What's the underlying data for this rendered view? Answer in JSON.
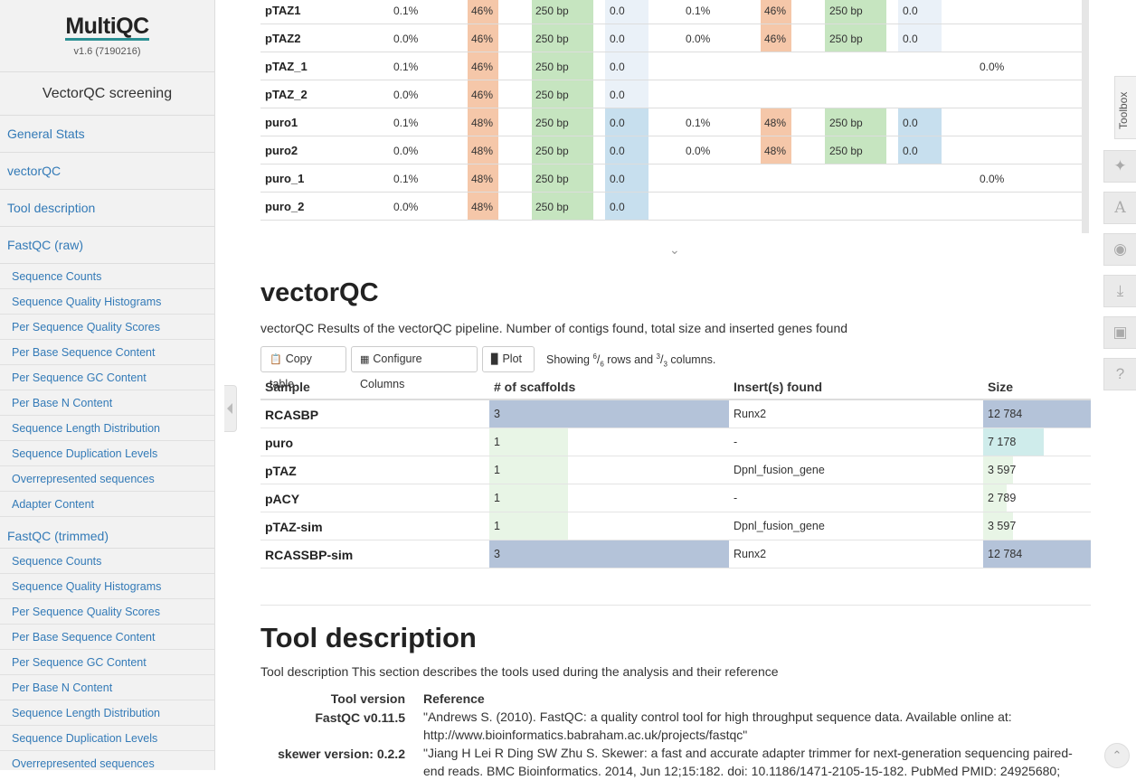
{
  "app": {
    "name": "MultiQC",
    "version": "v1.6 (7190216)",
    "report_title": "VectorQC screening"
  },
  "sidebar": {
    "main_items": [
      {
        "label": "General Stats"
      },
      {
        "label": "vectorQC"
      },
      {
        "label": "Tool description"
      },
      {
        "label": "FastQC (raw)"
      }
    ],
    "fastqc_raw_items": [
      "Sequence Counts",
      "Sequence Quality Histograms",
      "Per Sequence Quality Scores",
      "Per Base Sequence Content",
      "Per Sequence GC Content",
      "Per Base N Content",
      "Sequence Length Distribution",
      "Sequence Duplication Levels",
      "Overrepresented sequences",
      "Adapter Content"
    ],
    "fastqc_trimmed_label": "FastQC (trimmed)",
    "fastqc_trimmed_items": [
      "Sequence Counts",
      "Sequence Quality Histograms",
      "Per Sequence Quality Scores",
      "Per Base Sequence Content",
      "Per Sequence GC Content",
      "Per Base N Content",
      "Sequence Length Distribution",
      "Sequence Duplication Levels",
      "Overrepresented sequences"
    ]
  },
  "general_stats": {
    "rows": [
      {
        "sample": "pTAZ1",
        "dup1": "0.1%",
        "gc1": "46%",
        "len1": "250 bp",
        "n1": "0.0",
        "dup2": "0.1%",
        "gc2": "46%",
        "len2": "250 bp",
        "n2": "0.0",
        "extra": ""
      },
      {
        "sample": "pTAZ2",
        "dup1": "0.0%",
        "gc1": "46%",
        "len1": "250 bp",
        "n1": "0.0",
        "dup2": "0.0%",
        "gc2": "46%",
        "len2": "250 bp",
        "n2": "0.0",
        "extra": ""
      },
      {
        "sample": "pTAZ_1",
        "dup1": "0.1%",
        "gc1": "46%",
        "len1": "250 bp",
        "n1": "0.0",
        "dup2": "",
        "gc2": "",
        "len2": "",
        "n2": "",
        "extra": "0.0%"
      },
      {
        "sample": "pTAZ_2",
        "dup1": "0.0%",
        "gc1": "46%",
        "len1": "250 bp",
        "n1": "0.0",
        "dup2": "",
        "gc2": "",
        "len2": "",
        "n2": "",
        "extra": ""
      },
      {
        "sample": "puro1",
        "dup1": "0.1%",
        "gc1": "48%",
        "len1": "250 bp",
        "n1": "0.0",
        "dup2": "0.1%",
        "gc2": "48%",
        "len2": "250 bp",
        "n2": "0.0",
        "extra": ""
      },
      {
        "sample": "puro2",
        "dup1": "0.0%",
        "gc1": "48%",
        "len1": "250 bp",
        "n1": "0.0",
        "dup2": "0.0%",
        "gc2": "48%",
        "len2": "250 bp",
        "n2": "0.0",
        "extra": ""
      },
      {
        "sample": "puro_1",
        "dup1": "0.1%",
        "gc1": "48%",
        "len1": "250 bp",
        "n1": "0.0",
        "dup2": "",
        "gc2": "",
        "len2": "",
        "n2": "",
        "extra": "0.0%"
      },
      {
        "sample": "puro_2",
        "dup1": "0.0%",
        "gc1": "48%",
        "len1": "250 bp",
        "n1": "0.0",
        "dup2": "",
        "gc2": "",
        "len2": "",
        "n2": "",
        "extra": ""
      }
    ],
    "expand_icon": "chevron-down-icon"
  },
  "vectorqc": {
    "title": "vectorQC",
    "description": "vectorQC Results of the vectorQC pipeline. Number of contigs found, total size and inserted genes found",
    "buttons": {
      "copy": "Copy table",
      "configure": "Configure Columns",
      "plot": "Plot"
    },
    "showing_prefix": "Showing ",
    "rows_shown": "6",
    "rows_total": "6",
    "rows_word": " rows and ",
    "cols_shown": "3",
    "cols_total": "3",
    "cols_word": " columns.",
    "headers": {
      "sample": "Sample",
      "scaffolds": "# of scaffolds",
      "inserts": "Insert(s) found",
      "size": "Size"
    },
    "rows": [
      {
        "sample": "RCASBP",
        "scaffolds": "3",
        "scaffolds_frac": 1.0,
        "inserts": "Runx2",
        "size": "12 784",
        "size_frac": 1.0
      },
      {
        "sample": "puro",
        "scaffolds": "1",
        "scaffolds_frac": 0.33,
        "inserts": "-",
        "size": "7 178",
        "size_frac": 0.56
      },
      {
        "sample": "pTAZ",
        "scaffolds": "1",
        "scaffolds_frac": 0.33,
        "inserts": "Dpnl_fusion_gene",
        "size": "3 597",
        "size_frac": 0.28
      },
      {
        "sample": "pACY",
        "scaffolds": "1",
        "scaffolds_frac": 0.33,
        "inserts": "-",
        "size": "2 789",
        "size_frac": 0.22
      },
      {
        "sample": "pTAZ-sim",
        "scaffolds": "1",
        "scaffolds_frac": 0.33,
        "inserts": "Dpnl_fusion_gene",
        "size": "3 597",
        "size_frac": 0.28
      },
      {
        "sample": "RCASSBP-sim",
        "scaffolds": "3",
        "scaffolds_frac": 1.0,
        "inserts": "Runx2",
        "size": "12 784",
        "size_frac": 1.0
      }
    ],
    "colors": {
      "scaffolds_high": "#b4c3d9",
      "scaffolds_low": "#e8f5e6",
      "size_high": "#b4c3d9",
      "size_mid": "#cfeceb",
      "size_low": "#e8f5e6"
    }
  },
  "tool_description": {
    "title": "Tool description",
    "description": "Tool description This section describes the tools used during the analysis and their reference",
    "header_version": "Tool version",
    "header_reference": "Reference",
    "tools": [
      {
        "version": "FastQC v0.11.5",
        "reference": "\"Andrews S. (2010). FastQC: a quality control tool for high throughput sequence data. Available online at: http://www.bioinformatics.babraham.ac.uk/projects/fastqc\""
      },
      {
        "version": "skewer version: 0.2.2",
        "reference": "\"Jiang H Lei R Ding SW Zhu S. Skewer: a fast and accurate adapter trimmer for next-generation sequencing paired-end reads. BMC Bioinformatics. 2014, Jun 12;15:182. doi: 10.1186/1471-2105-15-182. PubMed PMID: 24925680;"
      }
    ]
  },
  "toolbox": {
    "label": "Toolbox",
    "icons": [
      "pin-icon",
      "font-icon",
      "eye-slash-icon",
      "download-icon",
      "save-icon",
      "help-icon"
    ]
  },
  "colors": {
    "link": "#337ab7",
    "gc_bar": "#f5c7a9",
    "len_bar": "#c6e5c0",
    "n_bar": "#c7dfee"
  }
}
